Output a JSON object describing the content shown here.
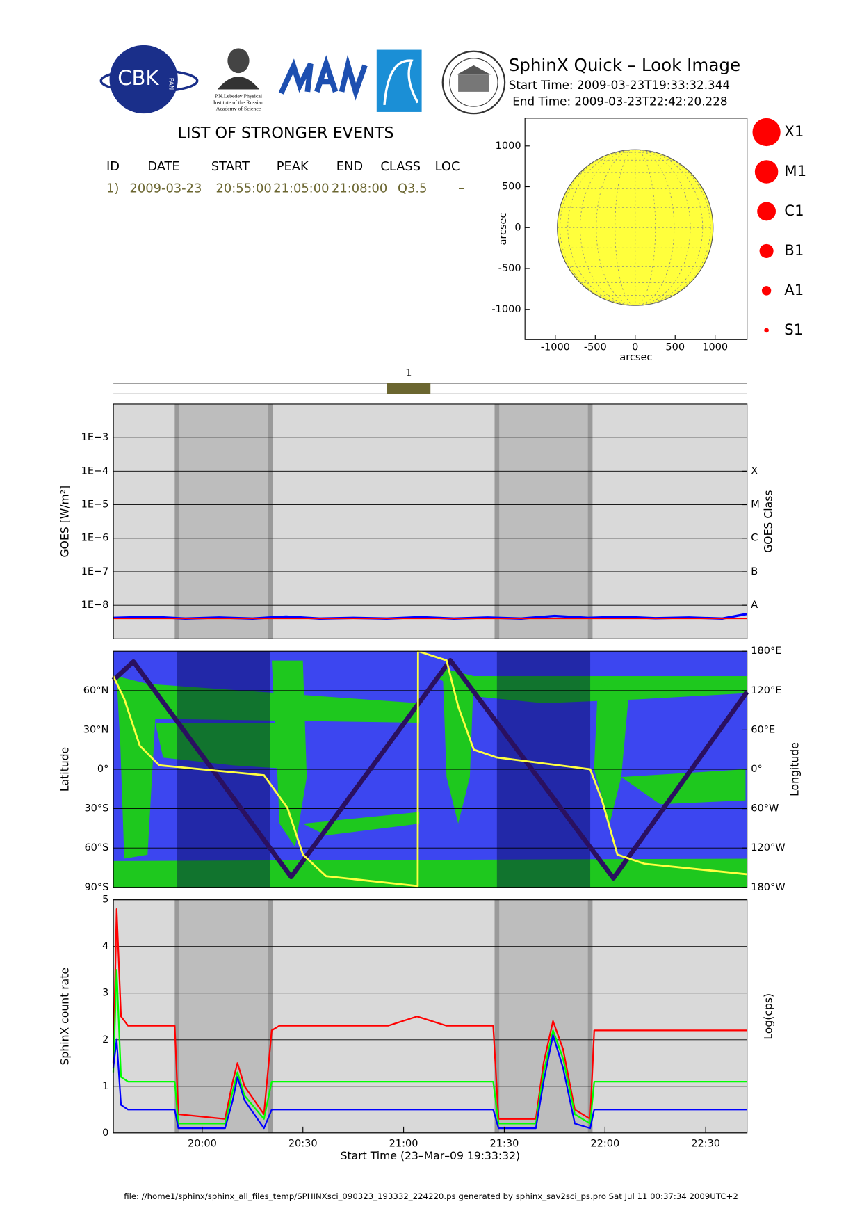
{
  "logos": {
    "cbk": "CBK",
    "pan": "PAN",
    "lebedev": [
      "P.N.Lebedev Physical",
      "Institute of the Russian",
      "Academy of Science"
    ]
  },
  "header": {
    "title": "SphinX Quick – Look Image",
    "start_time": "Start Time: 2009-03-23T19:33:32.344",
    "end_time": "End Time: 2009-03-23T22:42:20.228"
  },
  "events": {
    "title": "LIST OF STRONGER EVENTS",
    "columns": [
      "ID",
      "DATE",
      "START",
      "PEAK",
      "END",
      "CLASS",
      "LOC"
    ],
    "rows": [
      [
        "1)",
        "2009-03-23",
        "20:55:00",
        "21:05:00",
        "21:08:00",
        "Q3.5",
        "–"
      ]
    ]
  },
  "chart_data": [
    {
      "type": "disk",
      "xlim": [
        -1380,
        1400
      ],
      "ylim": [
        -1370,
        1340
      ],
      "xticks": [
        -1000,
        -500,
        0,
        500,
        1000
      ],
      "yticks": [
        -1000,
        -500,
        0,
        500,
        1000
      ],
      "xlabel": "arcsec",
      "ylabel": "arcsec",
      "radius": 975,
      "color": "#ffff3c",
      "size_legend": [
        "X1",
        "M1",
        "C1",
        "B1",
        "A1",
        "S1"
      ],
      "legend_color": "#ff0000"
    },
    {
      "type": "gantt",
      "xlim": [
        1173.53,
        1362.33
      ],
      "labels": [
        "1"
      ],
      "start": [
        1255
      ],
      "end": [
        1268
      ],
      "color": "#6b6630"
    },
    {
      "type": "line",
      "log": true,
      "xlim": [
        1173.53,
        1362.33
      ],
      "ylim": [
        1e-09,
        0.01
      ],
      "yticks": [
        {
          "value": 1e-08,
          "label": "1E−8"
        },
        {
          "value": 1e-07,
          "label": "1E−7"
        },
        {
          "value": 1e-06,
          "label": "1E−6"
        },
        {
          "value": 1e-05,
          "label": "1E−5"
        },
        {
          "value": 0.0001,
          "label": "1E−4"
        },
        {
          "value": 0.001,
          "label": "1E−3"
        }
      ],
      "y2ticks": [
        {
          "value": 1e-08,
          "label": "A"
        },
        {
          "value": 1e-07,
          "label": "B"
        },
        {
          "value": 1e-06,
          "label": "C"
        },
        {
          "value": 1e-05,
          "label": "M"
        },
        {
          "value": 0.0001,
          "label": "X"
        }
      ],
      "ylabel": "GOES [W/m²]",
      "y2label": "GOES Class",
      "grid": true,
      "background": "#d9d9d9",
      "shade_color": "#bdbdbd",
      "shaded": [
        [
          1192.5,
          1220.3
        ],
        [
          1287.8,
          1315.6
        ]
      ],
      "x": [
        1173.5,
        1185,
        1195,
        1205,
        1215,
        1225,
        1235,
        1245,
        1255,
        1265,
        1275,
        1285,
        1295,
        1305,
        1315,
        1325,
        1335,
        1345,
        1355,
        1362.3
      ],
      "series": [
        {
          "color": "#0000ff",
          "width": 3,
          "values": [
            4.2e-09,
            4.5e-09,
            4e-09,
            4.3e-09,
            4e-09,
            4.6e-09,
            4e-09,
            4.2e-09,
            4e-09,
            4.4e-09,
            4e-09,
            4.3e-09,
            4e-09,
            4.8e-09,
            4.2e-09,
            4.5e-09,
            4.1e-09,
            4.3e-09,
            4e-09,
            5.5e-09
          ]
        },
        {
          "color": "#ff0000",
          "width": 1.5,
          "values": [
            4e-09,
            4e-09,
            4e-09,
            4e-09,
            4e-09,
            4e-09,
            4e-09,
            4e-09,
            4e-09,
            4e-09,
            4e-09,
            4e-09,
            4e-09,
            4e-09,
            4e-09,
            4e-09,
            4e-09,
            4e-09,
            4e-09,
            4e-09
          ]
        }
      ]
    },
    {
      "type": "line",
      "log": false,
      "xlim": [
        1173.53,
        1362.33
      ],
      "ylim": [
        -90,
        90
      ],
      "y2lim": [
        -180,
        180
      ],
      "yticks": [
        {
          "value": 60,
          "label": "60°N"
        },
        {
          "value": 30,
          "label": "30°N"
        },
        {
          "value": 0,
          "label": "0°"
        },
        {
          "value": -30,
          "label": "30°S"
        },
        {
          "value": -60,
          "label": "60°S"
        },
        {
          "value": -90,
          "label": "90°S"
        }
      ],
      "y2ticks": [
        {
          "value": 180,
          "label": "180°E"
        },
        {
          "value": 120,
          "label": "120°E"
        },
        {
          "value": 60,
          "label": "60°E"
        },
        {
          "value": 0,
          "label": "0°"
        },
        {
          "value": -60,
          "label": "60°W"
        },
        {
          "value": -120,
          "label": "120°W"
        },
        {
          "value": -180,
          "label": "180°W"
        }
      ],
      "ylabel": "Latitude",
      "y2label": "Longitude",
      "grid": true,
      "background": "#3c46f0",
      "shade_color": "rgba(0,0,70,0.42)",
      "shaded": [
        [
          1192.5,
          1220.3
        ],
        [
          1287.8,
          1315.6
        ]
      ],
      "series": [
        {
          "color": "#2a1060",
          "width": 6,
          "x": [
            1173.5,
            1179.5,
            1226.5,
            1273.9,
            1322.5,
            1362.3
          ],
          "values": [
            68,
            82,
            -82,
            83,
            -83,
            59
          ]
        },
        {
          "color": "#ffff40",
          "width": 2.5,
          "axis": "y2",
          "x": [
            1173.5,
            1176.8,
            1181.4,
            1187.2,
            1218.4,
            1225.4,
            1230.0,
            1236.9,
            1264.2,
            1264.3,
            1272.8,
            1276.3,
            1280.9,
            1287.8,
            1315.6,
            1319.1,
            1323.7,
            1331.8,
            1362.3
          ],
          "values": [
            142,
            107,
            36,
            6,
            -9,
            -59,
            -130,
            -163,
            -178,
            180,
            166,
            95,
            30,
            18,
            0,
            -47,
            -130,
            -144,
            -160
          ]
        }
      ]
    },
    {
      "type": "line",
      "log": false,
      "xlim": [
        1173.53,
        1362.33
      ],
      "ylim": [
        0,
        5
      ],
      "yticks": [
        0,
        1,
        2,
        3,
        4,
        5
      ],
      "xticks": [
        {
          "value": 1200,
          "label": "20:00"
        },
        {
          "value": 1230,
          "label": "20:30"
        },
        {
          "value": 1260,
          "label": "21:00"
        },
        {
          "value": 1290,
          "label": "21:30"
        },
        {
          "value": 1320,
          "label": "22:00"
        },
        {
          "value": 1350,
          "label": "22:30"
        }
      ],
      "xlabel": "Start Time (23–Mar–09 19:33:32)",
      "ylabel": "SphinX count rate",
      "y2label": "Log(cps)",
      "grid": true,
      "background": "#d9d9d9",
      "shade_color": "#bdbdbd",
      "shaded": [
        [
          1192.5,
          1220.3
        ],
        [
          1287.8,
          1315.6
        ]
      ],
      "x": [
        1173.5,
        1174.5,
        1175.8,
        1177.9,
        1191.8,
        1192.9,
        1206.8,
        1209.1,
        1210.5,
        1212.6,
        1218.4,
        1220.7,
        1223.0,
        1255.4,
        1264.0,
        1272.8,
        1286.7,
        1288.3,
        1299.4,
        1301.7,
        1304.5,
        1307.5,
        1311.0,
        1315.6,
        1316.8,
        1362.3
      ],
      "series": [
        {
          "color": "#ff0000",
          "width": 2,
          "values": [
            1.5,
            4.8,
            2.5,
            2.3,
            2.3,
            0.4,
            0.3,
            1.1,
            1.5,
            1.0,
            0.4,
            2.2,
            2.3,
            2.3,
            2.5,
            2.3,
            2.3,
            0.3,
            0.3,
            1.5,
            2.4,
            1.8,
            0.5,
            0.3,
            2.2,
            2.2
          ]
        },
        {
          "color": "#00ff00",
          "width": 2,
          "values": [
            1.3,
            3.5,
            1.2,
            1.1,
            1.1,
            0.2,
            0.2,
            0.9,
            1.3,
            0.8,
            0.3,
            1.1,
            1.1,
            1.1,
            1.1,
            1.1,
            1.1,
            0.2,
            0.2,
            1.3,
            2.2,
            1.6,
            0.4,
            0.2,
            1.1,
            1.1
          ]
        },
        {
          "color": "#0000ff",
          "width": 2,
          "values": [
            1.4,
            2.0,
            0.6,
            0.5,
            0.5,
            0.1,
            0.1,
            0.7,
            1.2,
            0.7,
            0.1,
            0.5,
            0.5,
            0.5,
            0.5,
            0.5,
            0.5,
            0.1,
            0.1,
            1.1,
            2.1,
            1.4,
            0.2,
            0.1,
            0.5,
            0.5
          ]
        }
      ]
    }
  ],
  "footer": "file: //home1/sphinx/sphinx_all_files_temp/SPHINXsci_090323_193332_224220.ps generated by sphinx_sav2sci_ps.pro Sat Jul 11 00:37:34 2009UTC+2"
}
